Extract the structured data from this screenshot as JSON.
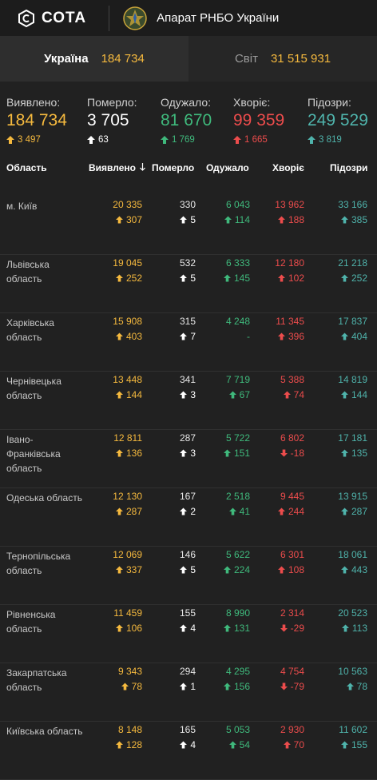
{
  "header": {
    "brand": "СОТА",
    "org": "Апарат РНБО України"
  },
  "tabs": [
    {
      "label": "Україна",
      "value": "184 734"
    },
    {
      "label": "Світ",
      "value": "31 515 931"
    }
  ],
  "summary": [
    {
      "label": "Виявлено:",
      "value": "184 734",
      "delta": "3 497",
      "color": "#f5b93e",
      "dir": "up"
    },
    {
      "label": "Померло:",
      "value": "3 705",
      "delta": "63",
      "color": "#ffffff",
      "dir": "up"
    },
    {
      "label": "Одужало:",
      "value": "81 670",
      "delta": "1 769",
      "color": "#3fb97c",
      "dir": "up"
    },
    {
      "label": "Хворіє:",
      "value": "99 359",
      "delta": "1 665",
      "color": "#ec4c4c",
      "dir": "up"
    },
    {
      "label": "Підозри:",
      "value": "249 529",
      "delta": "3 819",
      "color": "#4fb3ab",
      "dir": "up"
    }
  ],
  "table": {
    "headers": [
      "Область",
      "Виявлено",
      "Померло",
      "Одужало",
      "Хворіє",
      "Підозри"
    ],
    "rows": [
      {
        "region": "м. Київ",
        "cells": [
          [
            "20 335",
            "307",
            "up"
          ],
          [
            "330",
            "5",
            "up"
          ],
          [
            "6 043",
            "114",
            "up"
          ],
          [
            "13 962",
            "188",
            "up"
          ],
          [
            "33 166",
            "385",
            "up"
          ]
        ]
      },
      {
        "region": "Львівська область",
        "cells": [
          [
            "19 045",
            "252",
            "up"
          ],
          [
            "532",
            "5",
            "up"
          ],
          [
            "6 333",
            "145",
            "up"
          ],
          [
            "12 180",
            "102",
            "up"
          ],
          [
            "21 218",
            "252",
            "up"
          ]
        ]
      },
      {
        "region": "Харківська область",
        "cells": [
          [
            "15 908",
            "403",
            "up"
          ],
          [
            "315",
            "7",
            "up"
          ],
          [
            "4 248",
            "-",
            "none"
          ],
          [
            "11 345",
            "396",
            "up"
          ],
          [
            "17 837",
            "404",
            "up"
          ]
        ]
      },
      {
        "region": "Чернівецька область",
        "cells": [
          [
            "13 448",
            "144",
            "up"
          ],
          [
            "341",
            "3",
            "up"
          ],
          [
            "7 719",
            "67",
            "up"
          ],
          [
            "5 388",
            "74",
            "up"
          ],
          [
            "14 819",
            "144",
            "up"
          ]
        ]
      },
      {
        "region": "Івано-Франківська область",
        "cells": [
          [
            "12 811",
            "136",
            "up"
          ],
          [
            "287",
            "3",
            "up"
          ],
          [
            "5 722",
            "151",
            "up"
          ],
          [
            "6 802",
            "-18",
            "down"
          ],
          [
            "17 181",
            "135",
            "up"
          ]
        ]
      },
      {
        "region": "Одеська область",
        "cells": [
          [
            "12 130",
            "287",
            "up"
          ],
          [
            "167",
            "2",
            "up"
          ],
          [
            "2 518",
            "41",
            "up"
          ],
          [
            "9 445",
            "244",
            "up"
          ],
          [
            "13 915",
            "287",
            "up"
          ]
        ]
      },
      {
        "region": "Тернопільська область",
        "cells": [
          [
            "12 069",
            "337",
            "up"
          ],
          [
            "146",
            "5",
            "up"
          ],
          [
            "5 622",
            "224",
            "up"
          ],
          [
            "6 301",
            "108",
            "up"
          ],
          [
            "18 061",
            "443",
            "up"
          ]
        ]
      },
      {
        "region": "Рівненська область",
        "cells": [
          [
            "11 459",
            "106",
            "up"
          ],
          [
            "155",
            "4",
            "up"
          ],
          [
            "8 990",
            "131",
            "up"
          ],
          [
            "2 314",
            "-29",
            "down"
          ],
          [
            "20 523",
            "113",
            "up"
          ]
        ]
      },
      {
        "region": "Закарпатська область",
        "cells": [
          [
            "9 343",
            "78",
            "up"
          ],
          [
            "294",
            "1",
            "up"
          ],
          [
            "4 295",
            "156",
            "up"
          ],
          [
            "4 754",
            "-79",
            "down"
          ],
          [
            "10 563",
            "78",
            "up"
          ]
        ]
      },
      {
        "region": "Київська область",
        "cells": [
          [
            "8 148",
            "128",
            "up"
          ],
          [
            "165",
            "4",
            "up"
          ],
          [
            "5 053",
            "54",
            "up"
          ],
          [
            "2 930",
            "70",
            "up"
          ],
          [
            "11 602",
            "155",
            "up"
          ]
        ]
      }
    ]
  }
}
